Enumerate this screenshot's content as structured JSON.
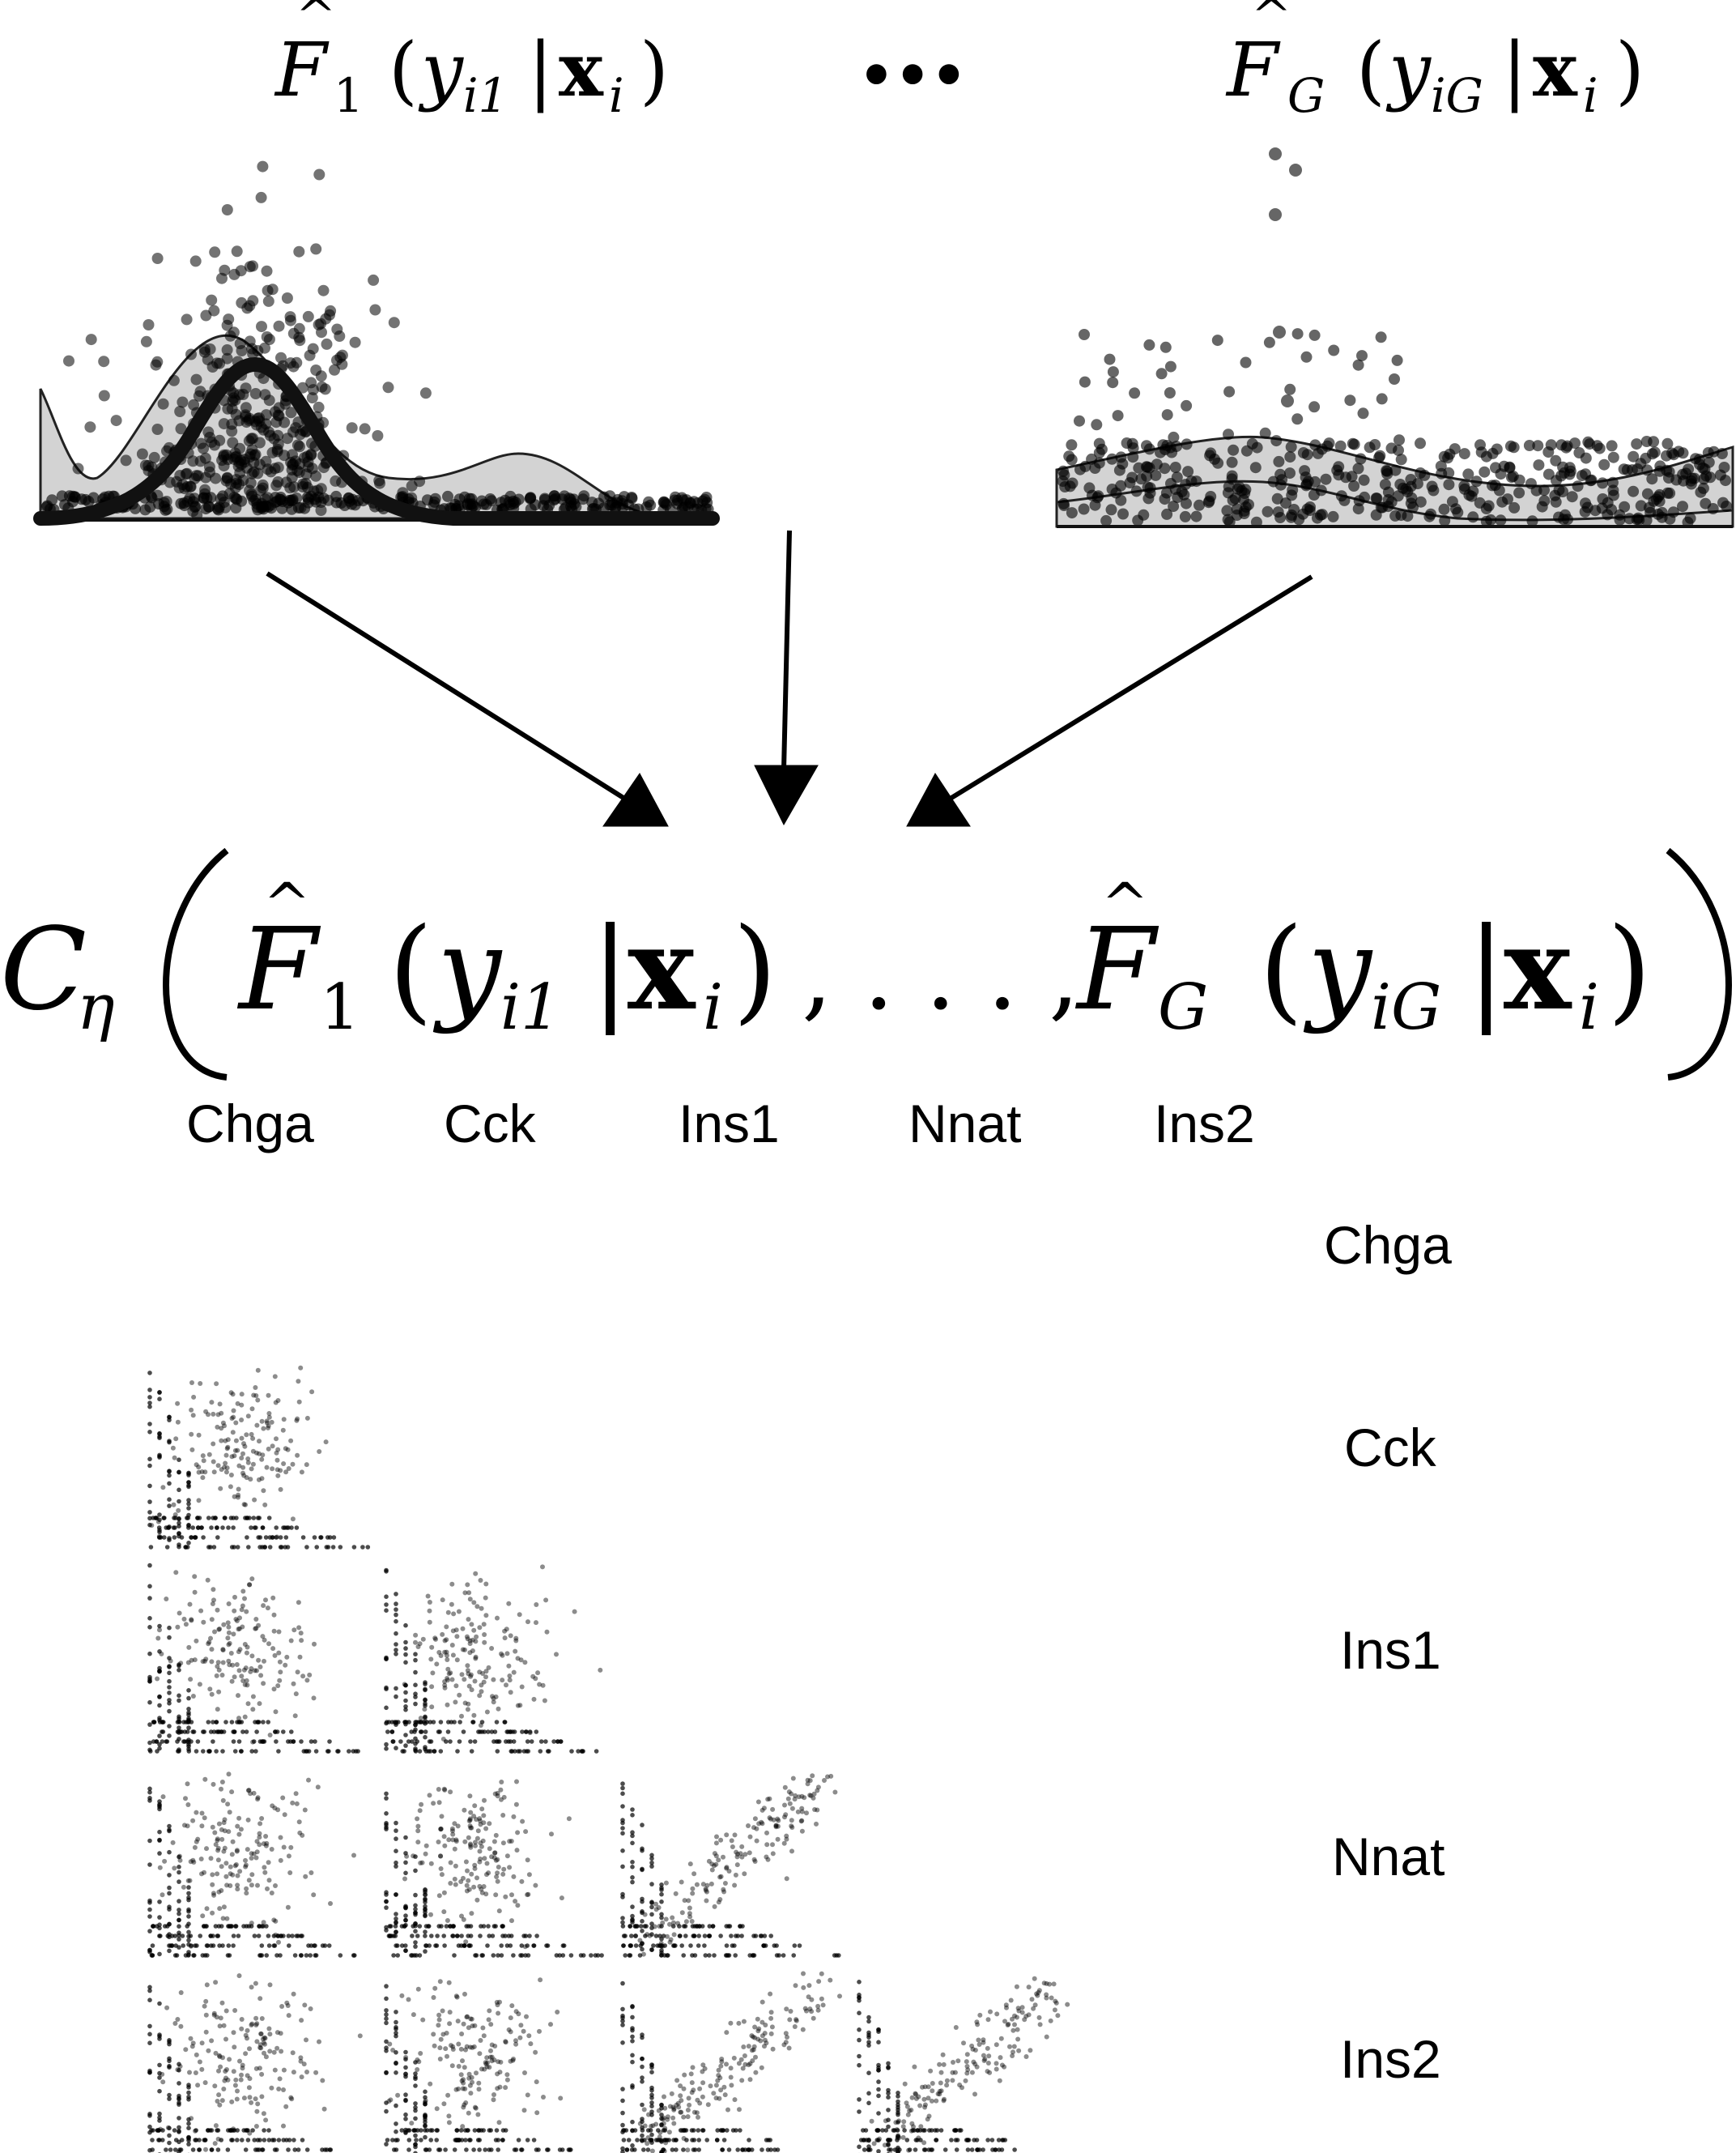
{
  "top_formula": {
    "left": {
      "fn": "F",
      "sub": "1",
      "open": "(",
      "var": "y",
      "var_sub": "i1",
      "bar": "|",
      "cond": "x",
      "cond_sub": "i",
      "close": ")"
    },
    "ellipsis": "•••",
    "right": {
      "fn": "F",
      "sub": "G",
      "open": "(",
      "var": "y",
      "var_sub": "iG",
      "bar": "|",
      "cond": "x",
      "cond_sub": "i",
      "close": ")"
    }
  },
  "copula": {
    "symbol": "C",
    "symbol_sub": "η",
    "open": "(",
    "close": ")",
    "separator": ", . . . ,"
  },
  "genes_top": [
    "Chga",
    "Cck",
    "Ins1",
    "Nnat",
    "Ins2"
  ],
  "genes_side": [
    "Chga",
    "Cck",
    "Ins1",
    "Nnat",
    "Ins2"
  ],
  "marginal_panels": [
    {
      "id": "F1",
      "description_type": "density-with-jitter",
      "fit": "normal"
    },
    {
      "id": "FG",
      "description_type": "density-with-jitter",
      "fit": "flat"
    }
  ],
  "pairs": [
    {
      "row": "Cck",
      "col": "Chga"
    },
    {
      "row": "Ins1",
      "col": "Chga"
    },
    {
      "row": "Ins1",
      "col": "Cck"
    },
    {
      "row": "Nnat",
      "col": "Chga"
    },
    {
      "row": "Nnat",
      "col": "Cck"
    },
    {
      "row": "Nnat",
      "col": "Ins1"
    },
    {
      "row": "Ins2",
      "col": "Chga"
    },
    {
      "row": "Ins2",
      "col": "Cck"
    },
    {
      "row": "Ins2",
      "col": "Ins1"
    },
    {
      "row": "Ins2",
      "col": "Nnat"
    }
  ]
}
